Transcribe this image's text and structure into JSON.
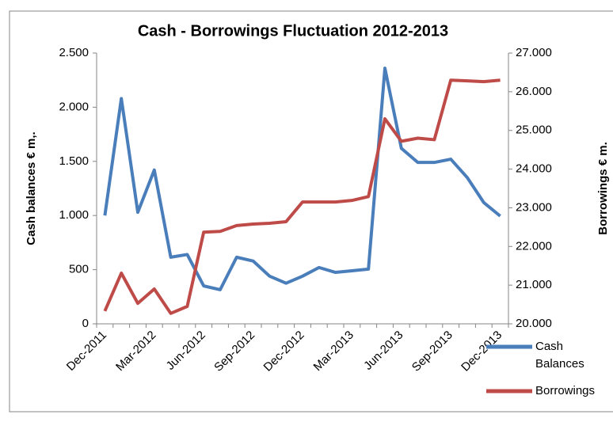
{
  "chart_data": {
    "type": "line",
    "title": "Cash - Borrowings Fluctuation 2012-2013",
    "y_label": "Cash balances € m,.",
    "y2_label": "Borrowings  € m.",
    "categories": [
      "Dec-2011",
      null,
      null,
      "Mar-2012",
      null,
      null,
      "Jun-2012",
      null,
      null,
      "Sep-2012",
      null,
      null,
      "Dec-2012",
      null,
      null,
      "Mar-2013",
      null,
      null,
      "Jun-2013",
      null,
      null,
      "Sep-2013",
      null,
      null,
      "Dec-2013"
    ],
    "series": [
      {
        "name": "Cash Balances",
        "color": "#4a7ebb",
        "axis": "y",
        "values": [
          1000,
          2080,
          1030,
          1420,
          615,
          640,
          350,
          315,
          615,
          580,
          440,
          375,
          440,
          520,
          475,
          490,
          505,
          2360,
          1620,
          1490,
          1490,
          1520,
          1350,
          1120,
          995
        ]
      },
      {
        "name": "Borrowings",
        "color": "#be4b48",
        "axis": "y2",
        "values": [
          20330,
          21310,
          20530,
          20900,
          20270,
          20450,
          22370,
          22390,
          22540,
          22580,
          22600,
          22640,
          23150,
          23150,
          23150,
          23190,
          23290,
          25300,
          24720,
          24800,
          24760,
          26300,
          26280,
          26260,
          26300
        ]
      }
    ],
    "ylim": [
      0,
      2500
    ],
    "yticks": [
      0,
      500,
      {
        "value": 1000,
        "label": "1.000"
      },
      {
        "value": 1500,
        "label": "1.500"
      },
      {
        "value": 2000,
        "label": "2.000"
      },
      {
        "value": 2500,
        "label": "2.500"
      }
    ],
    "y2lim": [
      20000,
      27000
    ],
    "y2ticks": [
      {
        "value": 20000,
        "label": "20.000"
      },
      {
        "value": 21000,
        "label": "21.000"
      },
      {
        "value": 22000,
        "label": "22.000"
      },
      {
        "value": 23000,
        "label": "23.000"
      },
      {
        "value": 24000,
        "label": "24.000"
      },
      {
        "value": 25000,
        "label": "25.000"
      },
      {
        "value": 26000,
        "label": "26.000"
      },
      {
        "value": 27000,
        "label": "27.000"
      }
    ],
    "legend": "right"
  }
}
